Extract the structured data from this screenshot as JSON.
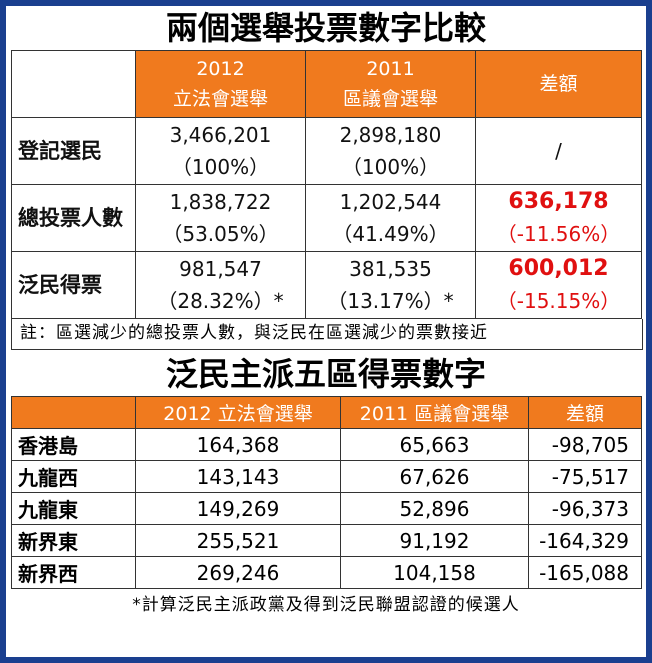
{
  "title": "兩個選舉投票數字比較",
  "table1": {
    "headers": [
      {
        "year": "2012",
        "name": "立法會選舉"
      },
      {
        "year": "2011",
        "name": "區議會選舉"
      },
      {
        "name": "差額"
      }
    ],
    "rows": [
      {
        "label": "登記選民",
        "c1": [
          "3,466,201",
          "（100%）"
        ],
        "c2": [
          "2,898,180",
          "（100%）"
        ],
        "diff": [
          "/",
          ""
        ]
      },
      {
        "label": "總投票人數",
        "c1": [
          "1,838,722",
          "（53.05%）"
        ],
        "c2": [
          "1,202,544",
          "（41.49%）"
        ],
        "diff": [
          "636,178",
          "（-11.56%）"
        ]
      },
      {
        "label": "泛民得票",
        "c1": [
          "981,547",
          "（28.32%）*"
        ],
        "c2": [
          "381,535",
          "（13.17%）*"
        ],
        "diff": [
          "600,012",
          "（-15.15%）"
        ]
      }
    ],
    "note": "註：區選減少的總投票人數，與泛民在區選減少的票數接近"
  },
  "title2": "泛民主派五區得票數字",
  "table2": {
    "headers": [
      "",
      "2012 立法會選舉",
      "2011 區議會選舉",
      "差額"
    ],
    "rows": [
      {
        "region": "香港島",
        "c1": "164,368",
        "c2": "65,663",
        "diff": "-98,705"
      },
      {
        "region": "九龍西",
        "c1": "143,143",
        "c2": "67,626",
        "diff": "-75,517"
      },
      {
        "region": "九龍東",
        "c1": "149,269",
        "c2": "52,896",
        "diff": "-96,373"
      },
      {
        "region": "新界東",
        "c1": "255,521",
        "c2": "91,192",
        "diff": "-164,329"
      },
      {
        "region": "新界西",
        "c1": "269,246",
        "c2": "104,158",
        "diff": "-165,088"
      }
    ],
    "note": "*計算泛民主派政黨及得到泛民聯盟認證的候選人"
  },
  "colors": {
    "border": "#1a3f8f",
    "header": "#f07a1e",
    "highlight": "#e01010"
  }
}
